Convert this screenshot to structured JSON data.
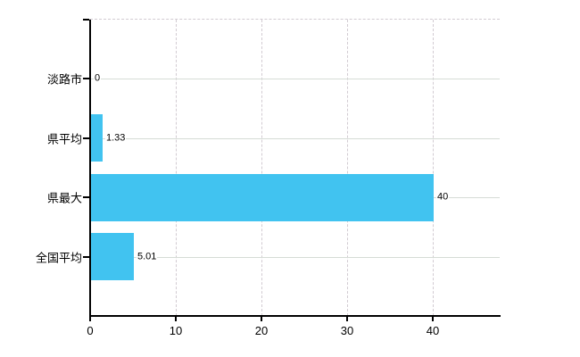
{
  "chart_data": {
    "type": "bar",
    "orientation": "horizontal",
    "title": "",
    "xlabel": "",
    "ylabel": "",
    "categories": [
      "淡路市",
      "県平均",
      "県最大",
      "全国平均"
    ],
    "values": [
      0,
      1.33,
      40,
      5.01
    ],
    "value_labels": [
      "0",
      "1.33",
      "40",
      "5.01"
    ],
    "x_ticks": [
      0,
      10,
      20,
      30,
      40
    ],
    "x_tick_labels": [
      "0",
      "10",
      "20",
      "30",
      "40"
    ],
    "xlim": [
      0,
      47.8
    ],
    "grid": true,
    "legend": false,
    "bar_color": "#41c3f0",
    "axis_color": "#000000",
    "hgrid_color": "#d6dcd6",
    "vgrid_color": "#d2cbd2",
    "background_color": "#ffffff"
  }
}
